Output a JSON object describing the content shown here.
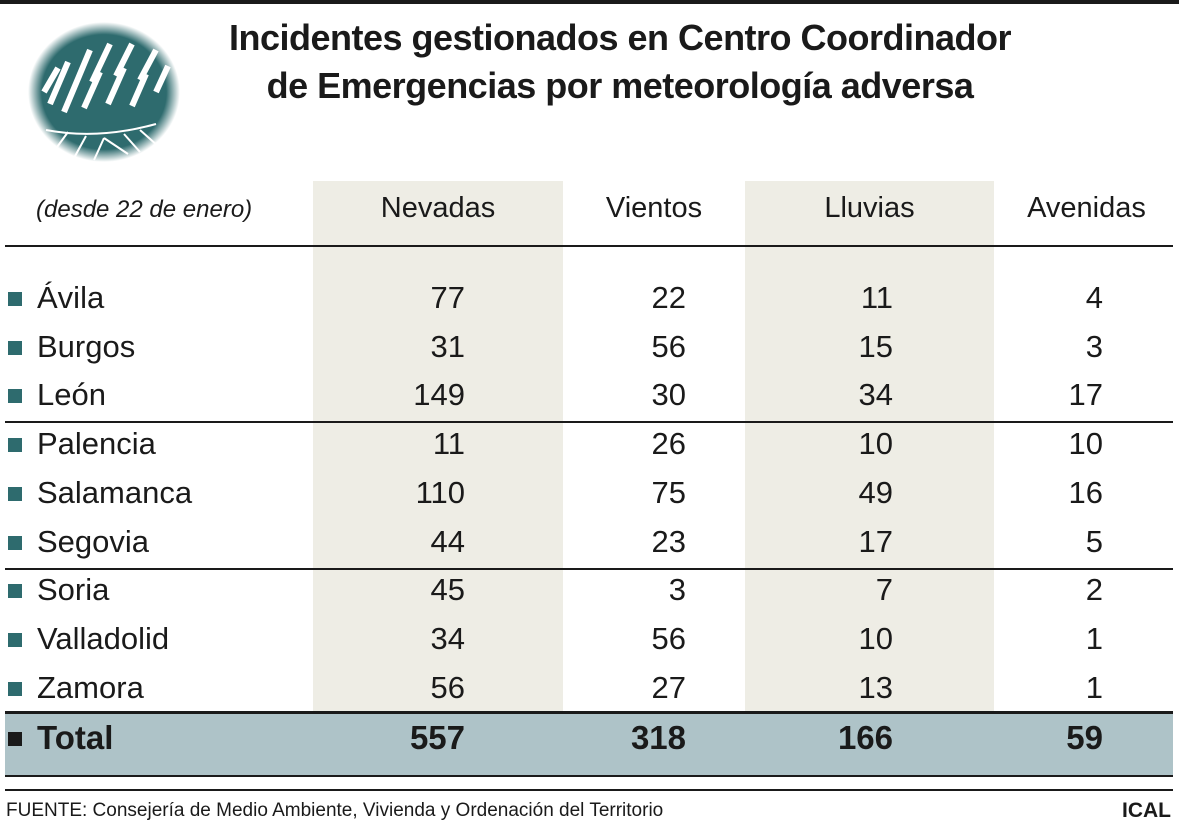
{
  "title_lines": [
    "Incidentes gestionados en Centro Coordinador",
    "de Emergencias por meteorología adversa"
  ],
  "logo": "weather-rain-field-logo",
  "colors": {
    "bullet": "#2e6b6e",
    "shade": "#eeede5",
    "total_band": "#aec3c8"
  },
  "chart_data": {
    "type": "table",
    "note": "(desde 22 de enero)",
    "columns": [
      "Nevadas",
      "Vientos",
      "Lluvias",
      "Avenidas"
    ],
    "rows": [
      {
        "name": "Ávila",
        "values": [
          77,
          22,
          11,
          4
        ]
      },
      {
        "name": "Burgos",
        "values": [
          31,
          56,
          15,
          3
        ]
      },
      {
        "name": "León",
        "values": [
          149,
          30,
          34,
          17
        ]
      },
      {
        "name": "Palencia",
        "values": [
          11,
          26,
          10,
          10
        ]
      },
      {
        "name": "Salamanca",
        "values": [
          110,
          75,
          49,
          16
        ]
      },
      {
        "name": "Segovia",
        "values": [
          44,
          23,
          17,
          5
        ]
      },
      {
        "name": "Soria",
        "values": [
          45,
          3,
          7,
          2
        ]
      },
      {
        "name": "Valladolid",
        "values": [
          34,
          56,
          10,
          1
        ]
      },
      {
        "name": "Zamora",
        "values": [
          56,
          27,
          13,
          1
        ]
      }
    ],
    "total": {
      "name": "Total",
      "values": [
        557,
        318,
        166,
        59
      ]
    }
  },
  "footer": {
    "source": "FUENTE: Consejería de Medio Ambiente, Vivienda y Ordenación del Territorio",
    "brand": "ICAL"
  }
}
